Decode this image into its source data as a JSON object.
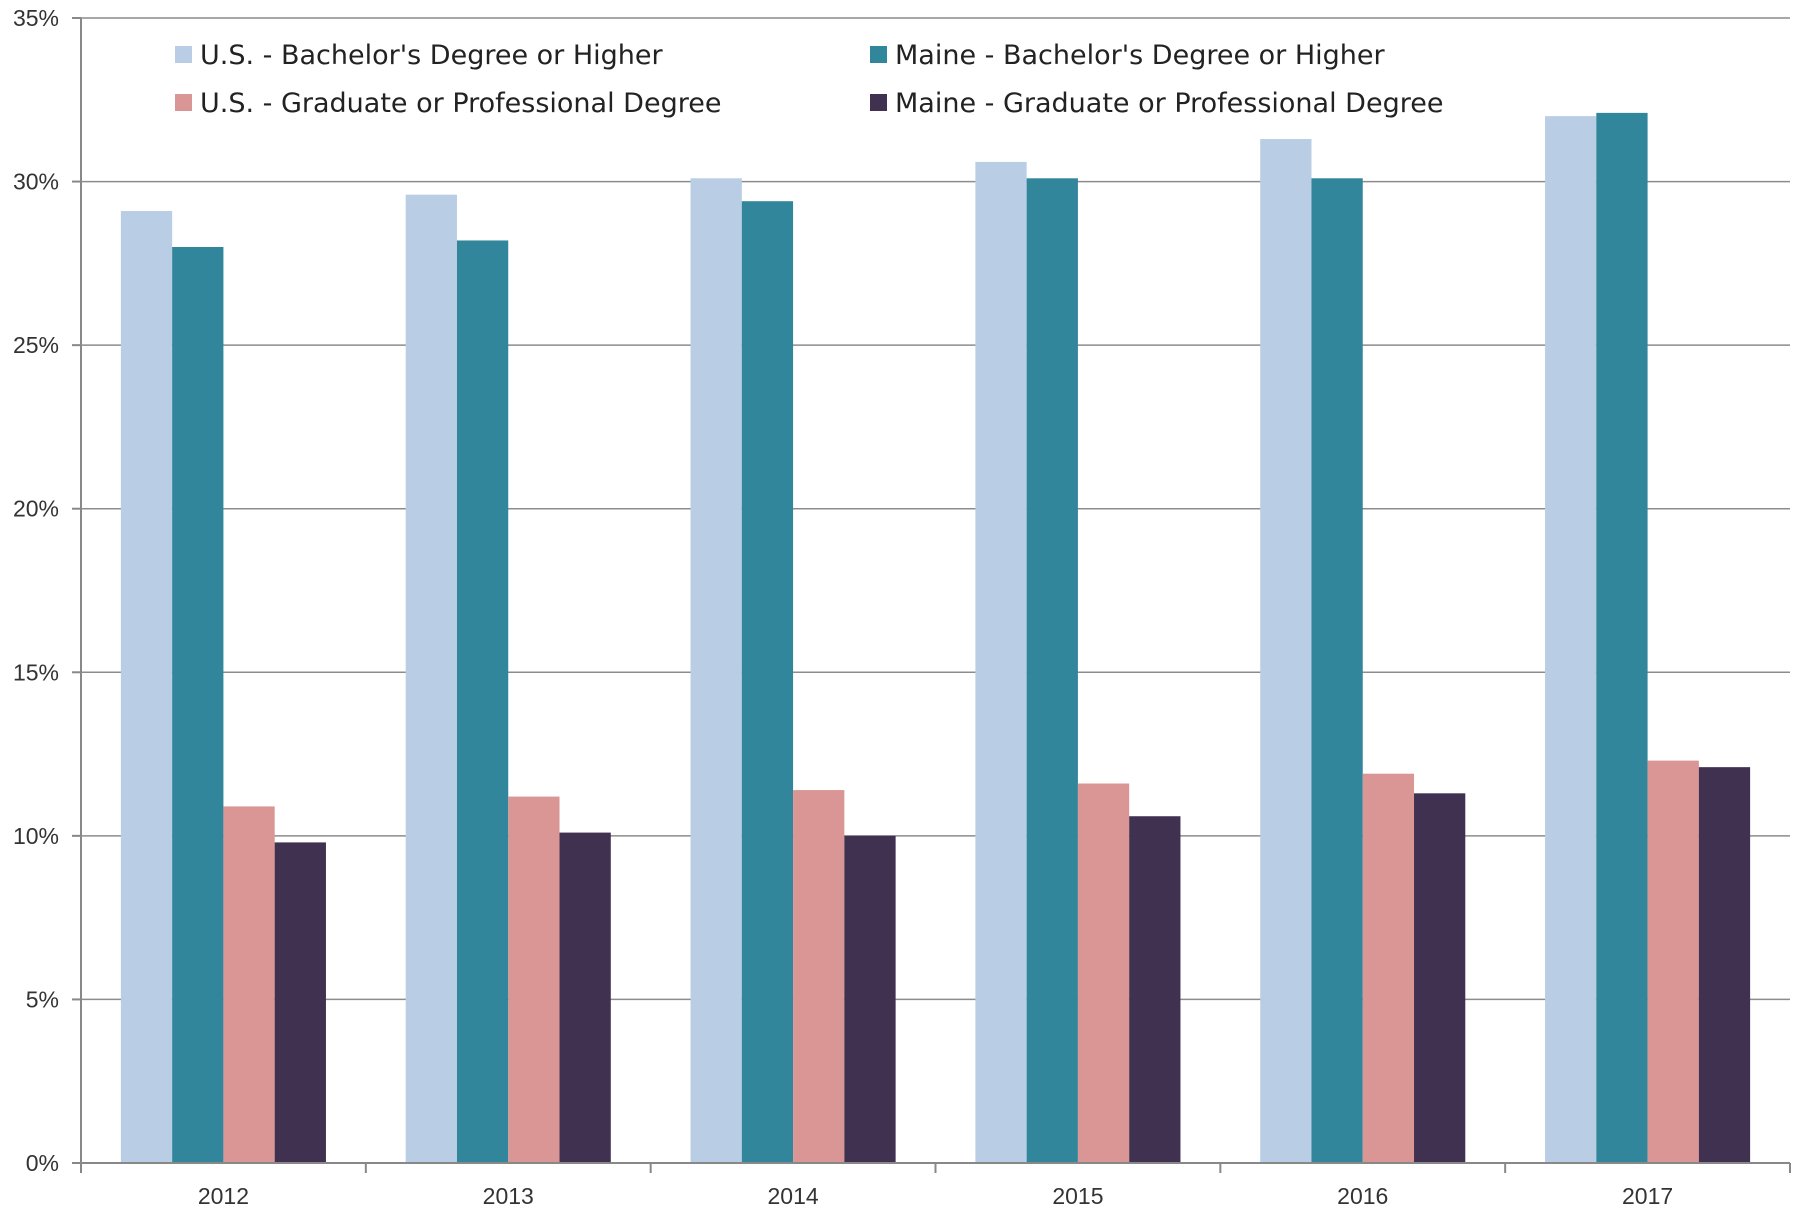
{
  "chart_data": {
    "type": "bar",
    "title": "",
    "xlabel": "",
    "ylabel": "",
    "categories": [
      "2012",
      "2013",
      "2014",
      "2015",
      "2016",
      "2017"
    ],
    "series": [
      {
        "name": "U.S. - Bachelor's Degree or Higher",
        "color": "#B9CDE5",
        "values": [
          29.1,
          29.6,
          30.1,
          30.6,
          31.3,
          32.0
        ]
      },
      {
        "name": "Maine - Bachelor's Degree or Higher",
        "color": "#31869B",
        "values": [
          28.0,
          28.2,
          29.4,
          30.1,
          30.1,
          32.1
        ]
      },
      {
        "name": "U.S. - Graduate or Professional Degree",
        "color": "#D99694",
        "values": [
          10.9,
          11.2,
          11.4,
          11.6,
          11.9,
          12.3
        ]
      },
      {
        "name": "Maine - Graduate or Professional Degree",
        "color": "#403151",
        "values": [
          9.8,
          10.1,
          10.0,
          10.6,
          11.3,
          12.1
        ]
      }
    ],
    "ylim": [
      0,
      35
    ],
    "yticks": [
      "0%",
      "5%",
      "10%",
      "15%",
      "20%",
      "25%",
      "30%",
      "35%"
    ],
    "grid": true,
    "legend_position": "top-left"
  }
}
